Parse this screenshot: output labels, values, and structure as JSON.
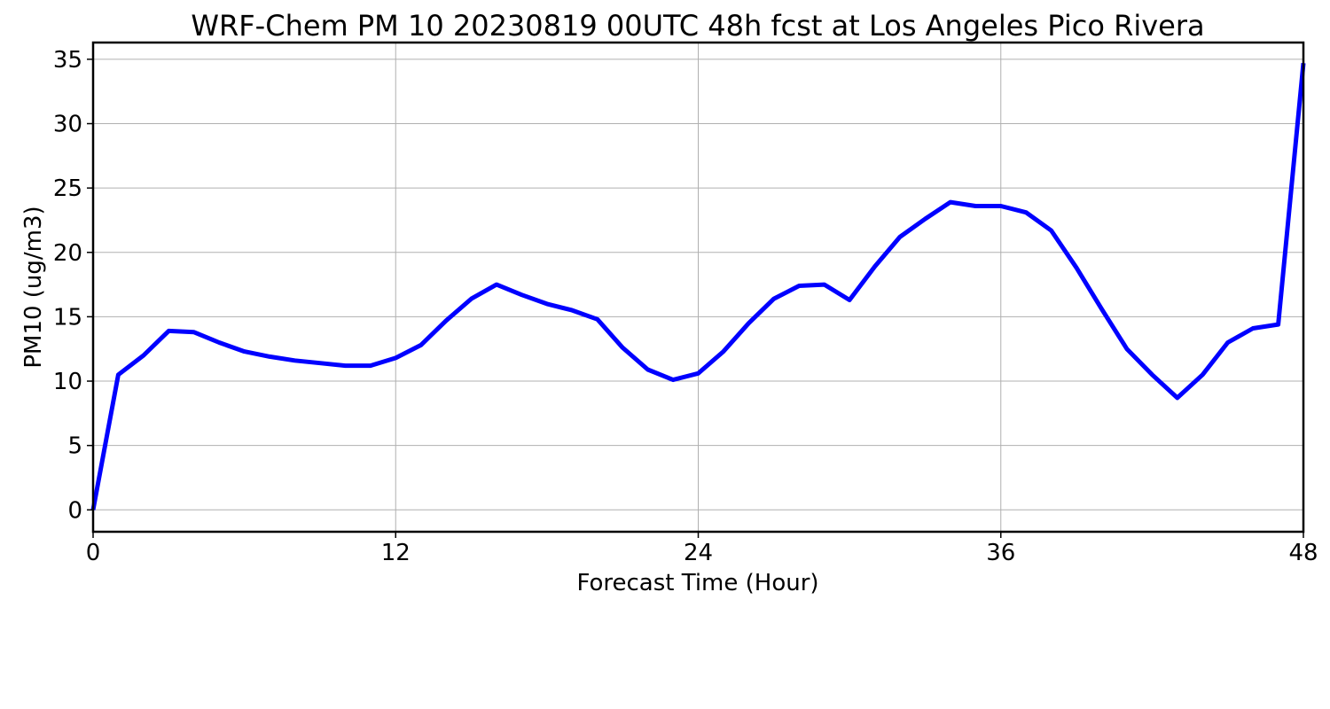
{
  "chart_data": {
    "type": "line",
    "title": "WRF-Chem PM 10  20230819 00UTC 48h fcst at Los Angeles Pico Rivera",
    "xlabel": "Forecast Time (Hour)",
    "ylabel": "PM10  (ug/m3)",
    "xlim": [
      0,
      48
    ],
    "ylim": [
      -1.7,
      36.3
    ],
    "xticks": [
      0,
      12,
      24,
      36,
      48
    ],
    "yticks": [
      0,
      5,
      10,
      15,
      20,
      25,
      30,
      35
    ],
    "grid": true,
    "legend": "none",
    "series": [
      {
        "color": "#0000ff",
        "x": [
          0,
          1,
          2,
          3,
          4,
          5,
          6,
          7,
          8,
          9,
          10,
          11,
          12,
          13,
          14,
          15,
          16,
          17,
          18,
          19,
          20,
          21,
          22,
          23,
          24,
          25,
          26,
          27,
          28,
          29,
          30,
          31,
          32,
          33,
          34,
          35,
          36,
          37,
          38,
          39,
          40,
          41,
          42,
          43,
          44,
          45,
          46,
          47,
          48
        ],
        "values": [
          0,
          10.5,
          12,
          13.9,
          13.8,
          13,
          12.3,
          11.9,
          11.6,
          11.4,
          11.2,
          11.2,
          11.8,
          12.8,
          14.7,
          16.4,
          17.5,
          16.7,
          16,
          15.5,
          14.8,
          12.6,
          10.9,
          10.1,
          10.6,
          12.3,
          14.5,
          16.4,
          17.4,
          17.5,
          16.3,
          18.9,
          21.2,
          22.6,
          23.9,
          23.6,
          23.6,
          23.1,
          21.7,
          18.8,
          15.6,
          12.5,
          10.5,
          8.7,
          10.5,
          13,
          14.1,
          14.4,
          34.7
        ]
      }
    ]
  }
}
